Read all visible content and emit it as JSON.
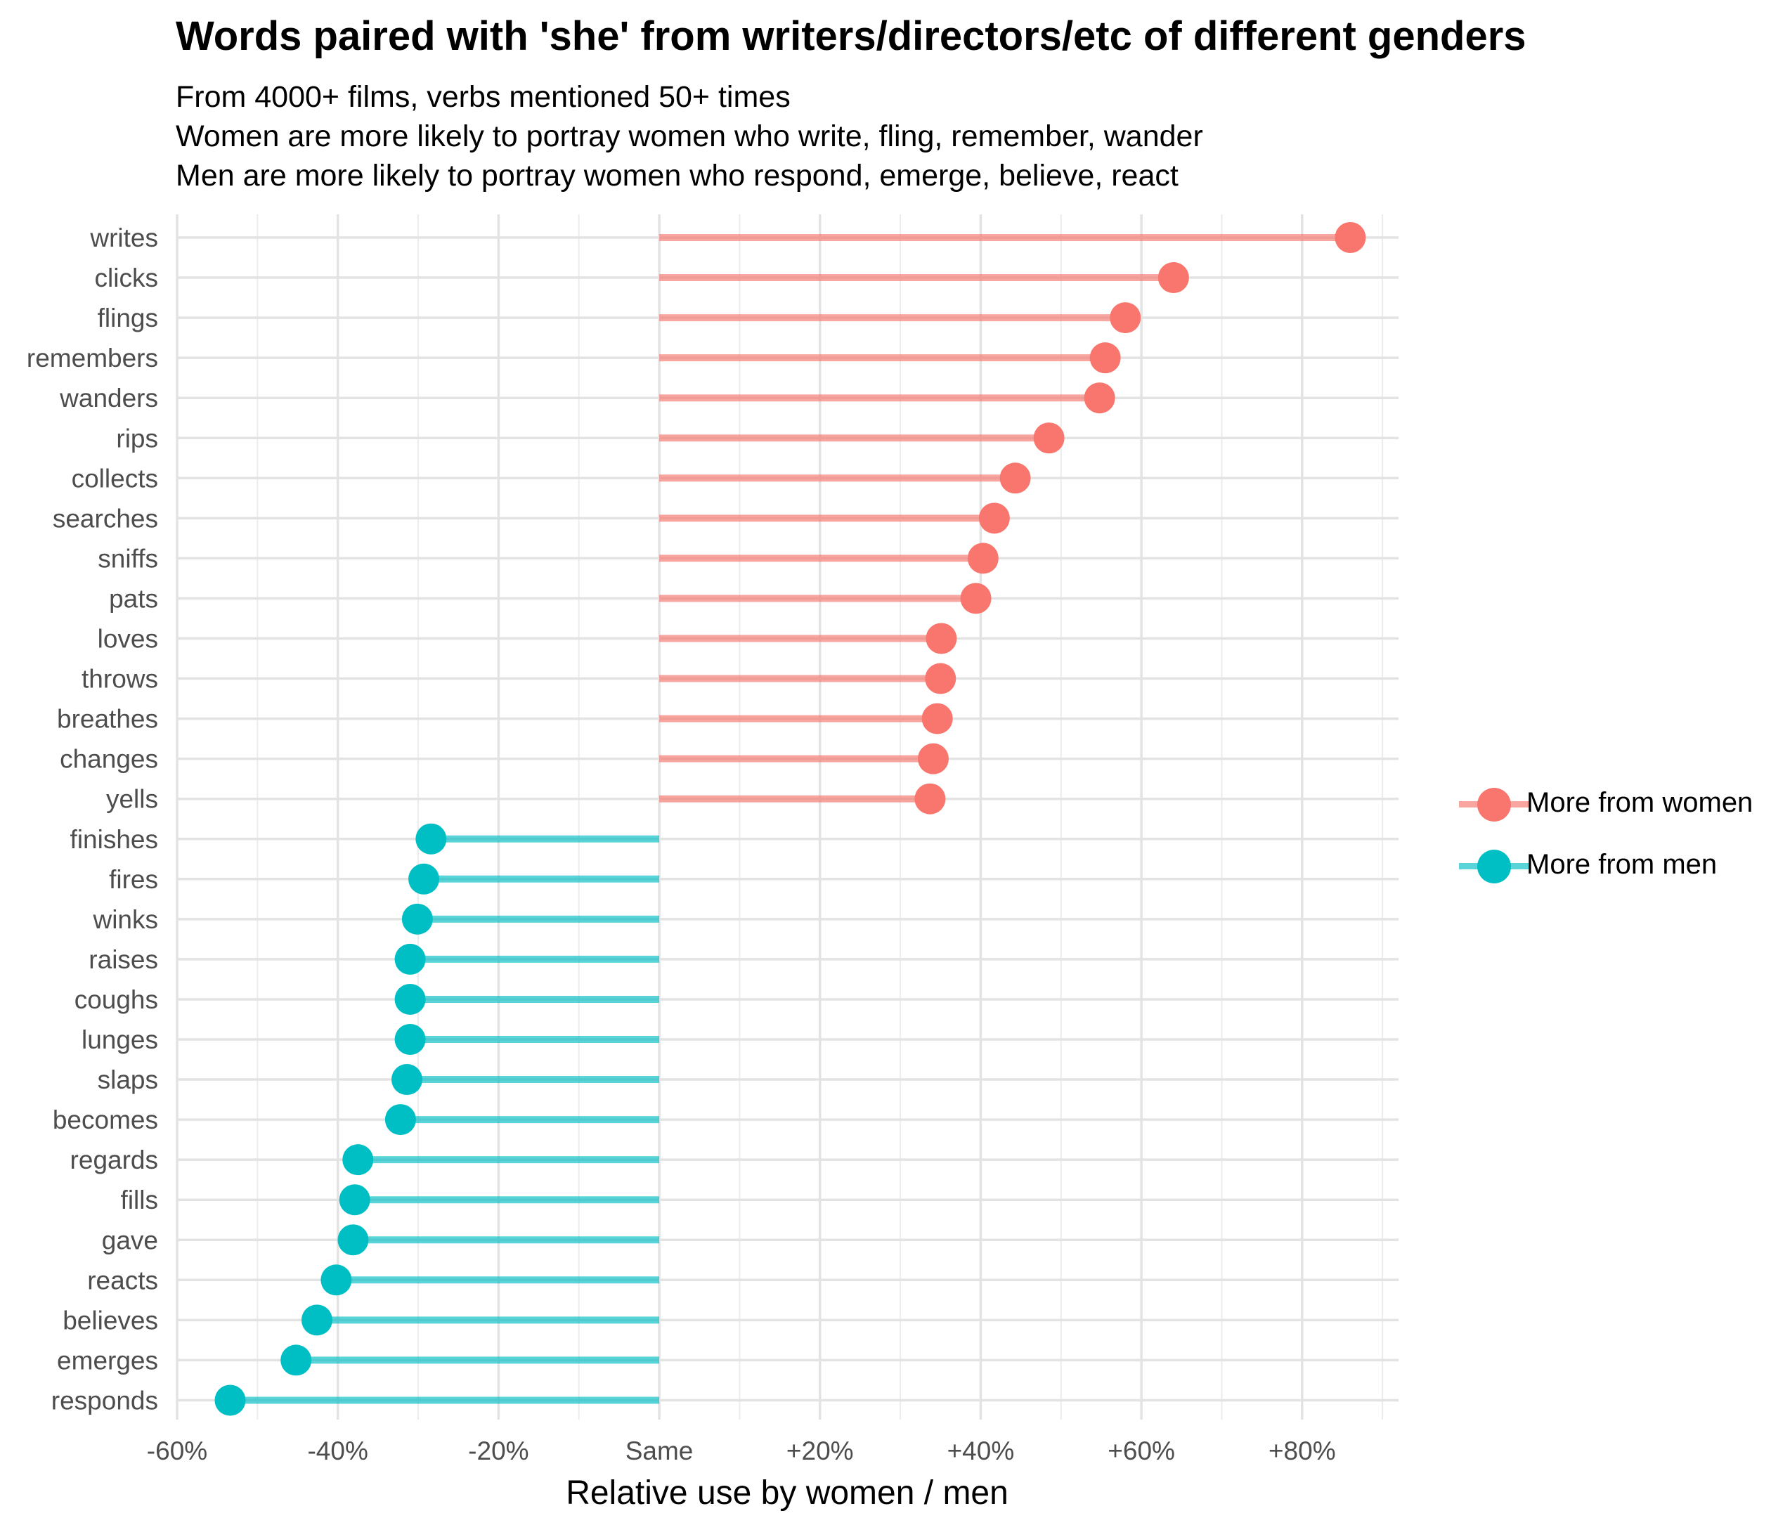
{
  "chart_data": {
    "type": "lollipop",
    "title": "Words paired with 'she' from writers/directors/etc of different genders",
    "subtitle": [
      "From 4000+ films, verbs mentioned 50+ times",
      "Women are more likely to portray women who write, fling, remember, wander",
      "Men are more likely to portray women who respond, emerge, believe, react"
    ],
    "xlabel": "Relative use by women / men",
    "ylabel": "",
    "xlim": [
      -60,
      92
    ],
    "x_ticks": [
      {
        "value": -60,
        "label": "-60%"
      },
      {
        "value": -40,
        "label": "-40%"
      },
      {
        "value": -20,
        "label": "-20%"
      },
      {
        "value": 0,
        "label": "Same"
      },
      {
        "value": 20,
        "label": "+20%"
      },
      {
        "value": 40,
        "label": "+40%"
      },
      {
        "value": 60,
        "label": "+60%"
      },
      {
        "value": 80,
        "label": "+80%"
      }
    ],
    "grid": true,
    "legend_position": "right",
    "series": [
      {
        "name": "More from women",
        "color": "#F8766D"
      },
      {
        "name": "More from men",
        "color": "#00BFC4"
      }
    ],
    "points": [
      {
        "word": "writes",
        "value": 86,
        "series": "More from women"
      },
      {
        "word": "clicks",
        "value": 64,
        "series": "More from women"
      },
      {
        "word": "flings",
        "value": 58,
        "series": "More from women"
      },
      {
        "word": "remembers",
        "value": 55.5,
        "series": "More from women"
      },
      {
        "word": "wanders",
        "value": 54.8,
        "series": "More from women"
      },
      {
        "word": "rips",
        "value": 48.5,
        "series": "More from women"
      },
      {
        "word": "collects",
        "value": 44.3,
        "series": "More from women"
      },
      {
        "word": "searches",
        "value": 41.7,
        "series": "More from women"
      },
      {
        "word": "sniffs",
        "value": 40.3,
        "series": "More from women"
      },
      {
        "word": "pats",
        "value": 39.4,
        "series": "More from women"
      },
      {
        "word": "loves",
        "value": 35.1,
        "series": "More from women"
      },
      {
        "word": "throws",
        "value": 35,
        "series": "More from women"
      },
      {
        "word": "breathes",
        "value": 34.6,
        "series": "More from women"
      },
      {
        "word": "changes",
        "value": 34.1,
        "series": "More from women"
      },
      {
        "word": "yells",
        "value": 33.7,
        "series": "More from women"
      },
      {
        "word": "finishes",
        "value": -28.4,
        "series": "More from men"
      },
      {
        "word": "fires",
        "value": -29.3,
        "series": "More from men"
      },
      {
        "word": "winks",
        "value": -30.1,
        "series": "More from men"
      },
      {
        "word": "raises",
        "value": -31,
        "series": "More from men"
      },
      {
        "word": "coughs",
        "value": -31,
        "series": "More from men"
      },
      {
        "word": "lunges",
        "value": -31,
        "series": "More from men"
      },
      {
        "word": "slaps",
        "value": -31.4,
        "series": "More from men"
      },
      {
        "word": "becomes",
        "value": -32.2,
        "series": "More from men"
      },
      {
        "word": "regards",
        "value": -37.5,
        "series": "More from men"
      },
      {
        "word": "fills",
        "value": -37.9,
        "series": "More from men"
      },
      {
        "word": "gave",
        "value": -38.1,
        "series": "More from men"
      },
      {
        "word": "reacts",
        "value": -40.2,
        "series": "More from men"
      },
      {
        "word": "believes",
        "value": -42.6,
        "series": "More from men"
      },
      {
        "word": "emerges",
        "value": -45.2,
        "series": "More from men"
      },
      {
        "word": "responds",
        "value": -53.4,
        "series": "More from men"
      }
    ]
  }
}
